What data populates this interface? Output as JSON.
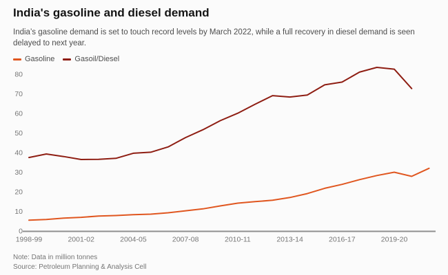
{
  "header": {
    "title": "India's gasoline and diesel demand",
    "subtitle": "India’s gasoline demand is set to touch record levels by March 2022, while a full recovery in diesel demand is seen delayed to next year."
  },
  "legend": [
    {
      "label": "Gasoline",
      "color": "#e0561f"
    },
    {
      "label": "Gasoil/Diesel",
      "color": "#8e1d12"
    }
  ],
  "chart_data": {
    "type": "line",
    "title": "India's gasoline and diesel demand",
    "xlabel": "",
    "ylabel": "",
    "unit_note": "Data in million tonnes",
    "x": [
      "1998-99",
      "1999-00",
      "2000-01",
      "2001-02",
      "2002-03",
      "2003-04",
      "2004-05",
      "2005-06",
      "2006-07",
      "2007-08",
      "2008-09",
      "2009-10",
      "2010-11",
      "2011-12",
      "2012-13",
      "2013-14",
      "2014-15",
      "2015-16",
      "2016-17",
      "2017-18",
      "2018-19",
      "2019-20",
      "2020-21",
      "2021-22"
    ],
    "series": [
      {
        "name": "Gasoline",
        "color": "#e0561f",
        "values": [
          5.5,
          5.9,
          6.6,
          7.0,
          7.6,
          7.9,
          8.3,
          8.6,
          9.3,
          10.3,
          11.3,
          12.8,
          14.2,
          15.0,
          15.7,
          17.1,
          19.1,
          21.8,
          23.8,
          26.2,
          28.3,
          30.0,
          27.9,
          32.0
        ]
      },
      {
        "name": "Gasoil/Diesel",
        "color": "#8e1d12",
        "values": [
          37.5,
          39.3,
          38.0,
          36.5,
          36.6,
          37.1,
          39.7,
          40.2,
          42.9,
          47.7,
          51.7,
          56.3,
          60.1,
          64.7,
          69.1,
          68.4,
          69.4,
          74.6,
          76.0,
          81.1,
          83.5,
          82.6,
          72.7,
          null
        ]
      }
    ],
    "ylim": [
      0,
      85
    ],
    "y_ticks": [
      0,
      10,
      20,
      30,
      40,
      50,
      60,
      70,
      80
    ],
    "x_tick_labels": [
      "1998-99",
      "2001-02",
      "2004-05",
      "2007-08",
      "2010-11",
      "2013-14",
      "2016-17",
      "2019-20"
    ],
    "x_tick_step": 3,
    "grid": false,
    "legend_position": "top-left"
  },
  "footer": {
    "note": "Note: Data in million tonnes",
    "source": "Source: Petroleum Planning & Analysis Cell"
  }
}
